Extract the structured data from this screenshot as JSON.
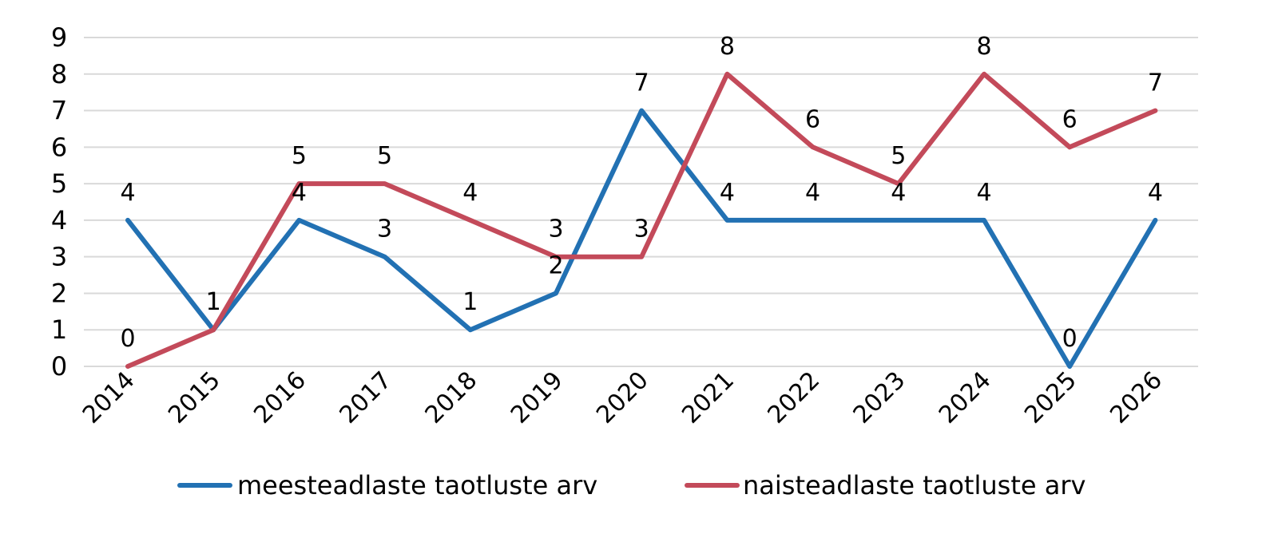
{
  "chart_data": {
    "type": "line",
    "title": "",
    "xlabel": "",
    "ylabel": "",
    "categories": [
      "2014",
      "2015",
      "2016",
      "2017",
      "2018",
      "2019",
      "2020",
      "2021",
      "2022",
      "2023",
      "2024",
      "2025",
      "2026"
    ],
    "ylim": [
      0,
      9
    ],
    "yticks": [
      0,
      1,
      2,
      3,
      4,
      5,
      6,
      7,
      8,
      9
    ],
    "grid": true,
    "legend_position": "bottom",
    "series": [
      {
        "name": "meesteadlaste taotluste arv",
        "color": "#2271b3",
        "values": [
          4,
          1,
          4,
          3,
          1,
          2,
          7,
          4,
          4,
          4,
          4,
          0,
          4
        ]
      },
      {
        "name": "naisteadlaste taotluste arv",
        "color": "#c34a5a",
        "values": [
          0,
          1,
          5,
          5,
          4,
          3,
          3,
          8,
          6,
          5,
          8,
          6,
          7
        ]
      }
    ]
  }
}
